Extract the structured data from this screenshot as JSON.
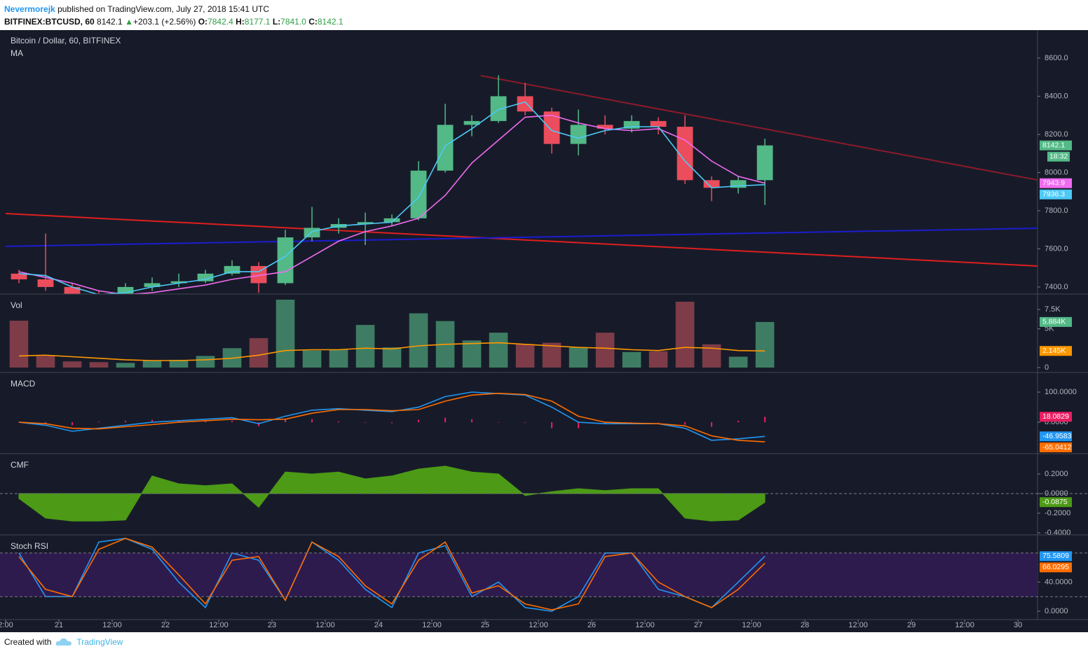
{
  "header": {
    "user": "Nevermorejk",
    "published": "published on TradingView.com, July 27, 2018 15:41 UTC",
    "symbol": "BITFINEX:BTCUSD, 60",
    "last": "8142.1",
    "arrow": "▲",
    "change": "+203.1 (+2.56%)",
    "o_key": "O:",
    "o": "7842.4",
    "h_key": "H:",
    "h": "8177.1",
    "l_key": "L:",
    "l": "7841.0",
    "c_key": "C:",
    "c": "8142.1"
  },
  "footer": {
    "created": "Created with",
    "brand": "TradingView"
  },
  "chart_data": [
    {
      "type": "candlestick",
      "title": "Bitcoin / Dollar, 60, BITFINEX",
      "subtitle": "MA",
      "countdown": "18:32",
      "x": [
        3,
        9,
        15,
        21,
        27,
        33,
        39,
        45,
        51,
        57,
        63,
        69,
        75,
        81,
        87,
        93,
        99,
        105,
        111,
        117,
        123,
        129,
        135,
        141,
        147,
        153,
        159,
        165,
        171
      ],
      "xlim": [
        0,
        232.4
      ],
      "open": [
        7470,
        7440,
        7400,
        7360,
        7340,
        7400,
        7420,
        7430,
        7470,
        7510,
        7420,
        7660,
        7710,
        7730,
        7740,
        7760,
        8010,
        8250,
        8270,
        8400,
        8320,
        8150,
        8250,
        8230,
        8270,
        8240,
        7960,
        7920,
        7960
      ],
      "high": [
        7490,
        7680,
        7420,
        7380,
        7420,
        7450,
        7470,
        7490,
        7540,
        7530,
        7700,
        7820,
        7760,
        7790,
        7780,
        8060,
        8360,
        8300,
        8510,
        8470,
        8340,
        8330,
        8300,
        8300,
        8290,
        8300,
        7980,
        7980,
        8177.1
      ],
      "low": [
        7420,
        7380,
        7340,
        7300,
        7320,
        7380,
        7400,
        7420,
        7460,
        7370,
        7410,
        7640,
        7680,
        7620,
        7720,
        7750,
        8000,
        8190,
        8260,
        8300,
        8100,
        8090,
        8200,
        8210,
        8200,
        7940,
        7850,
        7890,
        7830
      ],
      "close": [
        7440,
        7400,
        7360,
        7340,
        7400,
        7420,
        7430,
        7470,
        7510,
        7420,
        7660,
        7710,
        7730,
        7740,
        7760,
        8010,
        8250,
        8270,
        8400,
        8320,
        8150,
        8250,
        8230,
        8270,
        8240,
        7960,
        7920,
        7960,
        8142.1
      ],
      "up_color": "#53b987",
      "down_color": "#eb4d5c",
      "lines": [
        {
          "color": "#f06bf0",
          "values": [
            7480,
            7450,
            7420,
            7380,
            7360,
            7370,
            7390,
            7410,
            7440,
            7460,
            7480,
            7560,
            7640,
            7690,
            7720,
            7760,
            7880,
            8050,
            8170,
            8290,
            8300,
            8260,
            8230,
            8220,
            8230,
            8170,
            8060,
            7980,
            7943.9
          ]
        },
        {
          "color": "#4dc9f6",
          "values": [
            7470,
            7460,
            7400,
            7360,
            7370,
            7400,
            7420,
            7440,
            7480,
            7480,
            7560,
            7690,
            7720,
            7730,
            7740,
            7870,
            8140,
            8230,
            8330,
            8370,
            8220,
            8180,
            8220,
            8240,
            8240,
            8060,
            7920,
            7930,
            7936.3
          ]
        }
      ],
      "trend_lines": [
        {
          "color": "#8b1a2a",
          "x": [
            107,
            232.4
          ],
          "y": [
            8508,
            7961
          ]
        },
        {
          "color": "#e01e1e",
          "x": [
            0,
            232.4
          ],
          "y": [
            7785,
            7510
          ]
        },
        {
          "color": "#1c1ccf",
          "x": [
            0,
            232.4
          ],
          "y": [
            7613,
            7708
          ]
        }
      ],
      "ylim": [
        7363,
        8743
      ],
      "yticks": [
        {
          "value": 7400,
          "label": "7400.0"
        },
        {
          "value": 7600,
          "label": "7600.0"
        },
        {
          "value": 7800,
          "label": "7800.0"
        },
        {
          "value": 8000,
          "label": "8000.0"
        },
        {
          "value": 8200,
          "label": "8200.0"
        },
        {
          "value": 8400,
          "label": "8400.0"
        },
        {
          "value": 8600,
          "label": "8600.0"
        }
      ]
    },
    {
      "type": "bar",
      "title": "Vol",
      "up_color": "#3e7d63",
      "down_color": "#7d3c48",
      "label_color": "#53b987",
      "values": [
        6050,
        1500,
        800,
        700,
        600,
        900,
        1000,
        1500,
        2500,
        3800,
        8760,
        2200,
        2300,
        5500,
        2600,
        7000,
        6000,
        3500,
        4500,
        3000,
        3200,
        2600,
        4500,
        2000,
        2100,
        8500,
        3000,
        1400,
        5884
      ],
      "value_labels": [
        null,
        null,
        null,
        null,
        null,
        null,
        null,
        null,
        null,
        null,
        null,
        null,
        null,
        null,
        null,
        null,
        null,
        null,
        null,
        null,
        null,
        null,
        null,
        null,
        null,
        null,
        null,
        null,
        "5.884K"
      ],
      "lines": [
        {
          "color": "#ff9800",
          "values": [
            1500,
            1600,
            1400,
            1200,
            1000,
            900,
            900,
            1000,
            1200,
            1600,
            2200,
            2300,
            2300,
            2500,
            2400,
            2800,
            3000,
            3100,
            3200,
            3000,
            2800,
            2600,
            2500,
            2300,
            2200,
            2600,
            2500,
            2200,
            2145
          ],
          "value_labels": [
            null,
            null,
            null,
            null,
            null,
            null,
            null,
            null,
            null,
            null,
            null,
            null,
            null,
            null,
            null,
            null,
            null,
            null,
            null,
            null,
            null,
            null,
            null,
            null,
            null,
            null,
            null,
            null,
            "2.145K"
          ]
        }
      ],
      "ylim": [
        -452,
        9307
      ],
      "yticks": [
        0,
        {
          "value": 5000,
          "label": "5K"
        },
        {
          "value": 7500,
          "label": "7.5K"
        }
      ]
    },
    {
      "type": "macd",
      "title": "MACD",
      "histogram": {
        "color": "#e91e63",
        "values": [
          0,
          -5,
          -10,
          2,
          5,
          8,
          5,
          5,
          5,
          -13,
          10,
          10,
          3,
          -2,
          -3,
          8,
          15,
          10,
          -1,
          -2,
          -20,
          -20,
          -5,
          -2,
          0,
          -8,
          -15,
          5,
          18.0829
        ]
      },
      "lines": [
        {
          "color": "#2196f3",
          "values": [
            0,
            -10,
            -30,
            -20,
            -10,
            0,
            5,
            10,
            15,
            -5,
            20,
            40,
            45,
            40,
            35,
            50,
            85,
            100,
            95,
            90,
            50,
            0,
            -5,
            -5,
            -5,
            -20,
            -60,
            -55,
            -46.9583
          ]
        },
        {
          "color": "#ff6d00",
          "values": [
            0,
            -5,
            -20,
            -22,
            -15,
            -8,
            0,
            5,
            10,
            8,
            10,
            30,
            42,
            42,
            38,
            42,
            70,
            90,
            96,
            92,
            70,
            20,
            0,
            -3,
            -5,
            -12,
            -45,
            -60,
            -65.0412
          ]
        }
      ],
      "ylim": [
        -102,
        160.5
      ],
      "yticks": [
        {
          "value": 0,
          "label": "0.0000"
        },
        {
          "value": 100,
          "label": "100.0000"
        }
      ]
    },
    {
      "type": "area",
      "title": "CMF",
      "color": "#4c9a16",
      "dashed_zero": true,
      "values": [
        -0.05,
        -0.25,
        -0.28,
        -0.28,
        -0.27,
        0.18,
        0.1,
        0.08,
        0.1,
        -0.14,
        0.22,
        0.2,
        0.22,
        0.15,
        0.18,
        0.25,
        0.28,
        0.22,
        0.2,
        -0.02,
        0.02,
        0.05,
        0.03,
        0.05,
        0.05,
        -0.25,
        -0.28,
        -0.27,
        -0.0875
      ],
      "ylim": [
        -0.407,
        0.393
      ],
      "yticks": [
        {
          "value": -0.4,
          "label": "-0.4000"
        },
        {
          "value": -0.2,
          "label": "-0.2000"
        },
        {
          "value": 0,
          "label": "0.0000"
        },
        {
          "value": 0.2,
          "label": "0.2000"
        }
      ]
    },
    {
      "type": "stoch",
      "title": "Stoch RSI",
      "band": [
        20,
        80
      ],
      "band_color": "#2e1b4d",
      "lines": [
        {
          "color": "#2196f3",
          "values": [
            80,
            20,
            20,
            95,
            100,
            85,
            40,
            5,
            80,
            70,
            15,
            95,
            70,
            30,
            5,
            80,
            90,
            20,
            40,
            5,
            0,
            20,
            80,
            80,
            30,
            20,
            5,
            40,
            75.5809
          ]
        },
        {
          "color": "#ff6d00",
          "values": [
            75,
            30,
            20,
            85,
            100,
            88,
            50,
            10,
            70,
            75,
            15,
            95,
            75,
            35,
            10,
            70,
            95,
            25,
            35,
            10,
            2,
            10,
            75,
            80,
            40,
            20,
            5,
            30,
            66.0295
          ]
        }
      ],
      "ylim": [
        -11.5,
        102.9
      ],
      "yticks": [
        {
          "value": 0,
          "label": "0.0000"
        },
        {
          "value": 40,
          "label": "40.0000"
        }
      ],
      "xticks": [
        {
          "value": 0,
          "label": "2:00"
        },
        {
          "value": 12,
          "label": "21"
        },
        {
          "value": 24,
          "label": "12:00"
        },
        {
          "value": 36,
          "label": "22"
        },
        {
          "value": 48,
          "label": "12:00"
        },
        {
          "value": 60,
          "label": "23"
        },
        {
          "value": 72,
          "label": "12:00"
        },
        {
          "value": 84,
          "label": "24"
        },
        {
          "value": 96,
          "label": "12:00"
        },
        {
          "value": 108,
          "label": "25"
        },
        {
          "value": 120,
          "label": "12:00"
        },
        {
          "value": 132,
          "label": "26"
        },
        {
          "value": 144,
          "label": "12:00"
        },
        {
          "value": 156,
          "label": "27"
        },
        {
          "value": 168,
          "label": "12:00"
        },
        {
          "value": 180,
          "label": "28"
        },
        {
          "value": 192,
          "label": "12:00"
        },
        {
          "value": 204,
          "label": "29"
        },
        {
          "value": 216,
          "label": "12:00"
        },
        {
          "value": 228,
          "label": "30"
        }
      ]
    }
  ]
}
